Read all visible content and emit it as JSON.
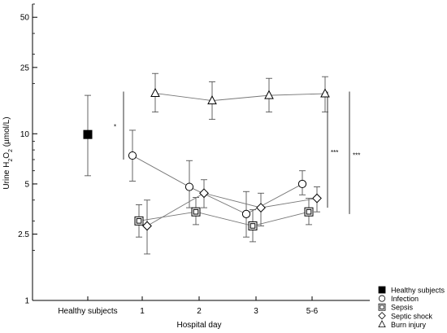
{
  "chart_data": {
    "type": "line",
    "xlabel": "Hospital day",
    "ylabel_parts": [
      "Urine H",
      "2",
      "O",
      "2",
      " (µmol/L)"
    ],
    "yscale": "log",
    "ylim": [
      1,
      60
    ],
    "ytick_labels": [
      "1",
      "2.5",
      "5",
      "10",
      "25",
      "50"
    ],
    "yticks": [
      1,
      2.5,
      5,
      10,
      25,
      50
    ],
    "categories": [
      "Healthy subjects",
      "1",
      "2",
      "3",
      "5-6"
    ],
    "grid": false,
    "legend_position": "bottom-right",
    "baseline": {
      "name": "Healthy subjects",
      "marker": "filled-square",
      "x": "Healthy subjects",
      "y": 9.9,
      "err_low": 5.6,
      "err_high": 17.0
    },
    "series": [
      {
        "name": "Infection",
        "marker": "circle",
        "points": [
          {
            "x": "1",
            "y": 7.4,
            "err_low": 5.2,
            "err_high": 10.5
          },
          {
            "x": "2",
            "y": 4.8,
            "err_low": 3.6,
            "err_high": 6.9
          },
          {
            "x": "3",
            "y": 3.3,
            "err_low": 2.4,
            "err_high": 4.5
          },
          {
            "x": "5-6",
            "y": 5.0,
            "err_low": 4.3,
            "err_high": 6.0
          }
        ]
      },
      {
        "name": "Sepsis",
        "marker": "square",
        "points": [
          {
            "x": "1",
            "y": 3.0,
            "err_low": 2.4,
            "err_high": 3.75
          },
          {
            "x": "2",
            "y": 3.4,
            "err_low": 2.85,
            "err_high": 4.15
          },
          {
            "x": "3",
            "y": 2.8,
            "err_low": 2.25,
            "err_high": 3.5
          },
          {
            "x": "5-6",
            "y": 3.4,
            "err_low": 2.85,
            "err_high": 4.1
          }
        ]
      },
      {
        "name": "Septic shock",
        "marker": "diamond",
        "points": [
          {
            "x": "1",
            "y": 2.8,
            "err_low": 1.9,
            "err_high": 4.0
          },
          {
            "x": "2",
            "y": 4.4,
            "err_low": 3.6,
            "err_high": 5.3
          },
          {
            "x": "3",
            "y": 3.6,
            "err_low": 2.8,
            "err_high": 4.4
          },
          {
            "x": "5-6",
            "y": 4.1,
            "err_low": 3.4,
            "err_high": 4.8
          }
        ]
      },
      {
        "name": "Burn injury",
        "marker": "triangle",
        "points": [
          {
            "x": "1",
            "y": 17.5,
            "err_low": 13.5,
            "err_high": 23.0
          },
          {
            "x": "2",
            "y": 15.8,
            "err_low": 12.2,
            "err_high": 20.5
          },
          {
            "x": "3",
            "y": 17.0,
            "err_low": 13.5,
            "err_high": 21.5
          },
          {
            "x": "5-6",
            "y": 17.4,
            "err_low": 13.5,
            "err_high": 22.0
          }
        ]
      }
    ],
    "significance": [
      {
        "label": "*",
        "y_from": 7.0,
        "y_to": 17.5
      },
      {
        "label": "***",
        "y_from": 3.6,
        "y_to": 17.5
      },
      {
        "label": "***",
        "y_from": 3.3,
        "y_to": 17.5
      }
    ]
  }
}
